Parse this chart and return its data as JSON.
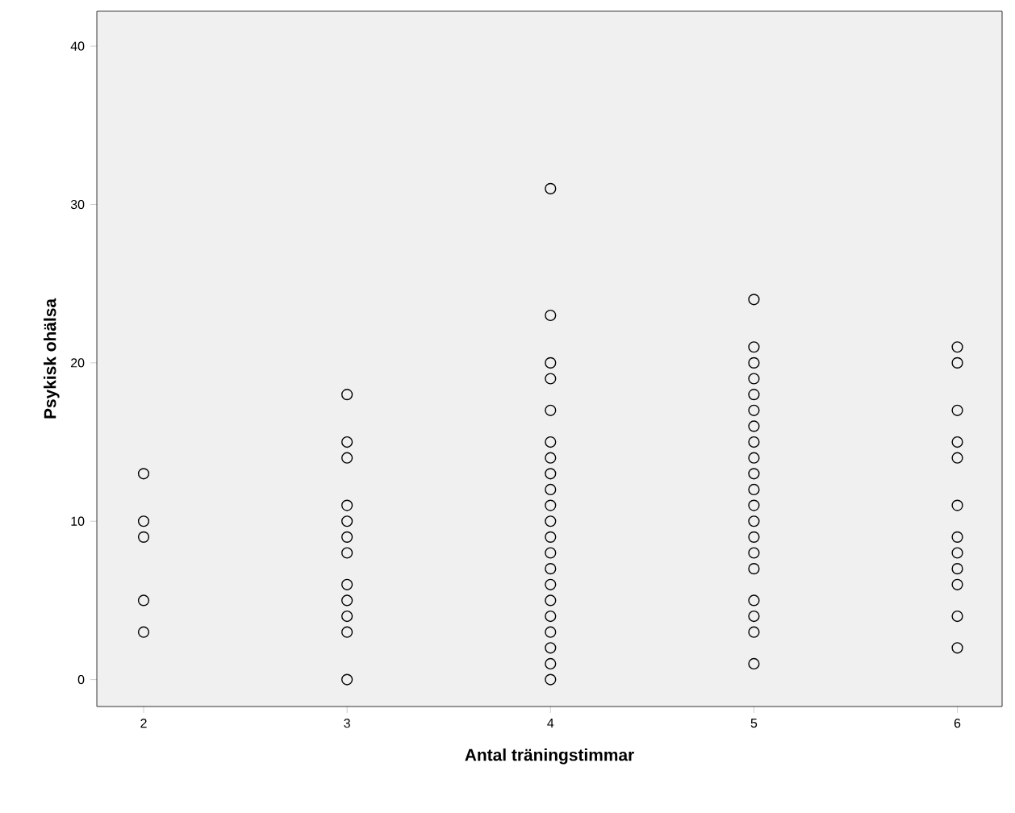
{
  "chart_data": {
    "type": "scatter",
    "xlabel": "Antal träningstimmar",
    "ylabel": "Psykisk ohälsa",
    "x": [
      2,
      2,
      2,
      2,
      2,
      3,
      3,
      3,
      3,
      3,
      3,
      3,
      3,
      3,
      3,
      3,
      3,
      4,
      4,
      4,
      4,
      4,
      4,
      4,
      4,
      4,
      4,
      4,
      4,
      4,
      4,
      4,
      4,
      4,
      4,
      4,
      4,
      4,
      5,
      5,
      5,
      5,
      5,
      5,
      5,
      5,
      5,
      5,
      5,
      5,
      5,
      5,
      5,
      5,
      5,
      5,
      5,
      5,
      6,
      6,
      6,
      6,
      6,
      6,
      6,
      6,
      6,
      6,
      6,
      6
    ],
    "values": [
      13,
      10,
      9,
      5,
      3,
      18,
      15,
      14,
      11,
      10,
      9,
      8,
      6,
      5,
      4,
      3,
      0,
      31,
      23,
      20,
      19,
      17,
      15,
      14,
      13,
      12,
      11,
      10,
      9,
      8,
      7,
      6,
      5,
      4,
      3,
      2,
      1,
      0,
      24,
      21,
      20,
      19,
      18,
      17,
      16,
      15,
      14,
      13,
      12,
      11,
      10,
      9,
      8,
      7,
      5,
      4,
      3,
      1,
      21,
      20,
      17,
      15,
      14,
      11,
      9,
      8,
      7,
      6,
      4,
      2
    ],
    "color": "#000000",
    "marker": "circle",
    "xlim": [
      1.77,
      6.22
    ],
    "ylim": [
      -1.7,
      42.2
    ],
    "xticks": [
      2,
      3,
      4,
      5,
      6
    ],
    "yticks": [
      0,
      10,
      20,
      30,
      40
    ],
    "grid": false
  }
}
